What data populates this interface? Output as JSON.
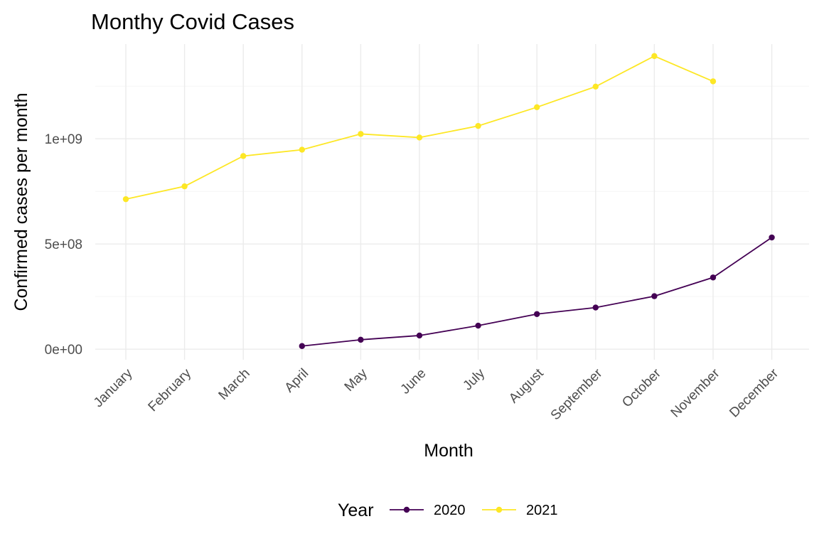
{
  "chart_data": {
    "type": "line",
    "title": "Monthy Covid Cases",
    "xlabel": "Month",
    "ylabel": "Confirmed cases per month",
    "categories": [
      "January",
      "February",
      "March",
      "April",
      "May",
      "June",
      "July",
      "August",
      "September",
      "October",
      "November",
      "December"
    ],
    "ylim": [
      -50000000,
      1450000000
    ],
    "yticks": [
      0,
      500000000,
      1000000000
    ],
    "ytick_labels": [
      "0e+00",
      "5e+08",
      "1e+09"
    ],
    "grid": true,
    "legend": {
      "title": "Year",
      "position": "bottom"
    },
    "series": [
      {
        "name": "2020",
        "color": "#440154",
        "values": [
          null,
          null,
          null,
          15000000,
          45000000,
          65000000,
          112000000,
          167000000,
          198000000,
          252000000,
          341000000,
          531000000
        ]
      },
      {
        "name": "2021",
        "color": "#FDE725",
        "values": [
          713000000,
          774000000,
          918000000,
          948000000,
          1023000000,
          1006000000,
          1061000000,
          1150000000,
          1248000000,
          1393000000,
          1273000000,
          null
        ]
      }
    ]
  }
}
